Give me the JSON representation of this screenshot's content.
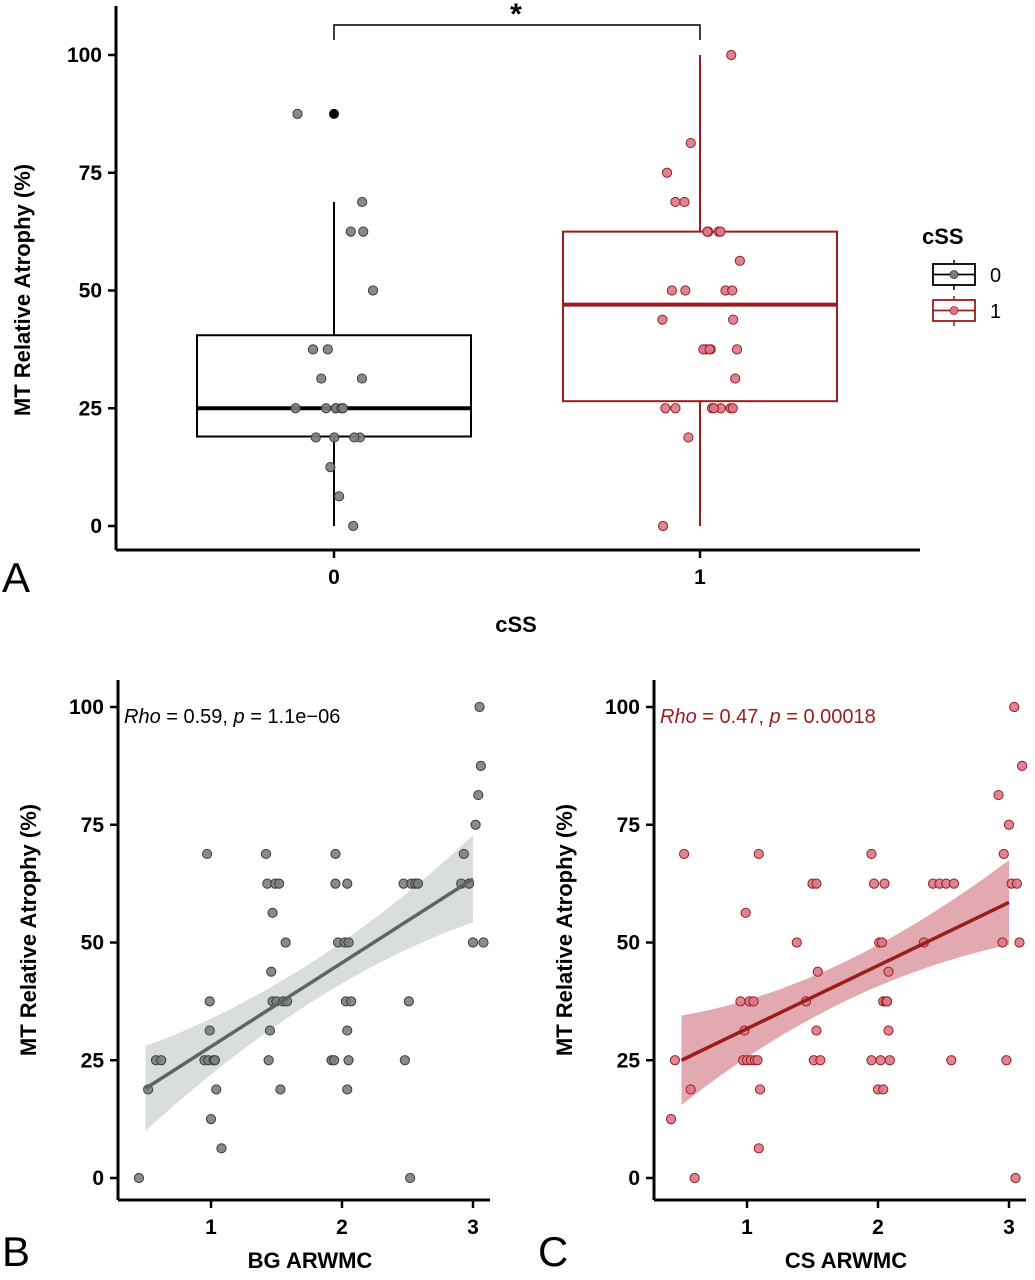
{
  "colors": {
    "black": "#000000",
    "group0_point": "#7a807c",
    "group1_point": "#d9788a",
    "group1_line": "#9b1c1c",
    "band0": "#d4d8d5",
    "band1": "#d7848f",
    "fit0": "#5f6461"
  },
  "chart_data": [
    {
      "panel_label": "A",
      "type": "box",
      "title": "",
      "xlabel": "cSS",
      "ylabel": "MT Relative Atrophy (%)",
      "categories": [
        "0",
        "1"
      ],
      "ylim": [
        -2,
        111
      ],
      "yticks": [
        0,
        25,
        50,
        75,
        100
      ],
      "significance": "*",
      "legend": {
        "title": "cSS",
        "entries": [
          "0",
          "1"
        ],
        "placement": "right"
      },
      "boxes": [
        {
          "category": "0",
          "whisker_low": 0,
          "q1": 19,
          "median": 25,
          "q3": 40.5,
          "whisker_high": 68.8,
          "outliers": [
            87.5
          ]
        },
        {
          "category": "1",
          "whisker_low": 0,
          "q1": 26.5,
          "median": 47,
          "q3": 62.5,
          "whisker_high": 100,
          "outliers": []
        }
      ],
      "points": [
        {
          "category": "0",
          "y": [
            0,
            6.3,
            12.5,
            18.8,
            18.8,
            18.8,
            18.8,
            25,
            25,
            25,
            25,
            25,
            25,
            31.3,
            31.3,
            37.5,
            37.5,
            50,
            62.5,
            62.5,
            68.8,
            87.5
          ]
        },
        {
          "category": "1",
          "y": [
            0,
            18.8,
            25,
            25,
            25,
            25,
            25,
            25,
            25,
            31.3,
            37.5,
            37.5,
            37.5,
            37.5,
            37.5,
            43.8,
            43.8,
            50,
            50,
            50,
            50,
            56.3,
            62.5,
            62.5,
            62.5,
            62.5,
            62.5,
            68.8,
            68.8,
            75,
            81.3,
            100
          ]
        }
      ]
    },
    {
      "panel_label": "B",
      "type": "scatter",
      "title": "",
      "xlabel": "BG ARWMC",
      "ylabel": "MT Relative Atrophy (%)",
      "xlim": [
        0.3,
        3.2
      ],
      "ylim": [
        -3,
        105
      ],
      "xticks": [
        1,
        2,
        3
      ],
      "yticks": [
        0,
        25,
        50,
        75,
        100
      ],
      "annotation": {
        "stat_name": "Rho",
        "stat_text": " = 0.59, ",
        "p_name": "p",
        "p_text": " = 1.1e−06"
      },
      "fit": {
        "x": [
          0.5,
          3.0
        ],
        "y": [
          19,
          63.5
        ],
        "ci_low": [
          10,
          54.5
        ],
        "ci_high": [
          28,
          73
        ]
      },
      "points": [
        {
          "x": 0.45,
          "y": 0
        },
        {
          "x": 0.52,
          "y": 18.8
        },
        {
          "x": 0.58,
          "y": 25
        },
        {
          "x": 0.62,
          "y": 25
        },
        {
          "x": 0.95,
          "y": 25
        },
        {
          "x": 0.97,
          "y": 68.8
        },
        {
          "x": 0.98,
          "y": 25
        },
        {
          "x": 0.99,
          "y": 31.3
        },
        {
          "x": 0.99,
          "y": 37.5
        },
        {
          "x": 1.0,
          "y": 12.5
        },
        {
          "x": 1.02,
          "y": 25
        },
        {
          "x": 1.03,
          "y": 25
        },
        {
          "x": 1.04,
          "y": 18.8
        },
        {
          "x": 1.08,
          "y": 6.3
        },
        {
          "x": 1.42,
          "y": 68.8
        },
        {
          "x": 1.43,
          "y": 62.5
        },
        {
          "x": 1.44,
          "y": 25
        },
        {
          "x": 1.45,
          "y": 31.3
        },
        {
          "x": 1.46,
          "y": 43.8
        },
        {
          "x": 1.47,
          "y": 56.3
        },
        {
          "x": 1.47,
          "y": 37.5
        },
        {
          "x": 1.49,
          "y": 62.5
        },
        {
          "x": 1.5,
          "y": 37.5
        },
        {
          "x": 1.52,
          "y": 62.5
        },
        {
          "x": 1.53,
          "y": 18.8
        },
        {
          "x": 1.55,
          "y": 37.5
        },
        {
          "x": 1.57,
          "y": 50
        },
        {
          "x": 1.58,
          "y": 37.5
        },
        {
          "x": 1.92,
          "y": 25
        },
        {
          "x": 1.94,
          "y": 25
        },
        {
          "x": 1.95,
          "y": 68.8
        },
        {
          "x": 1.95,
          "y": 62.5
        },
        {
          "x": 1.97,
          "y": 50
        },
        {
          "x": 2.02,
          "y": 50
        },
        {
          "x": 2.03,
          "y": 37.5
        },
        {
          "x": 2.04,
          "y": 62.5
        },
        {
          "x": 2.04,
          "y": 18.8
        },
        {
          "x": 2.04,
          "y": 31.3
        },
        {
          "x": 2.05,
          "y": 25
        },
        {
          "x": 2.05,
          "y": 50
        },
        {
          "x": 2.07,
          "y": 37.5
        },
        {
          "x": 2.47,
          "y": 62.5
        },
        {
          "x": 2.48,
          "y": 25
        },
        {
          "x": 2.51,
          "y": 37.5
        },
        {
          "x": 2.52,
          "y": 0
        },
        {
          "x": 2.53,
          "y": 62.5
        },
        {
          "x": 2.56,
          "y": 62.5
        },
        {
          "x": 2.58,
          "y": 62.5
        },
        {
          "x": 2.91,
          "y": 62.5
        },
        {
          "x": 2.93,
          "y": 68.8
        },
        {
          "x": 2.97,
          "y": 62.5
        },
        {
          "x": 3.0,
          "y": 50
        },
        {
          "x": 3.02,
          "y": 75
        },
        {
          "x": 3.04,
          "y": 81.3
        },
        {
          "x": 3.05,
          "y": 100
        },
        {
          "x": 3.06,
          "y": 87.5
        },
        {
          "x": 3.08,
          "y": 50
        }
      ]
    },
    {
      "panel_label": "C",
      "type": "scatter",
      "title": "",
      "xlabel": "CS ARWMC",
      "ylabel": "MT Relative Atrophy (%)",
      "xlim": [
        0.3,
        3.2
      ],
      "ylim": [
        -3,
        105
      ],
      "xticks": [
        1,
        2,
        3
      ],
      "yticks": [
        0,
        25,
        50,
        75,
        100
      ],
      "annotation": {
        "stat_name": "Rho",
        "stat_text": " = 0.47, ",
        "p_name": "p",
        "p_text": " = 0.00018"
      },
      "fit": {
        "x": [
          0.5,
          3.0
        ],
        "y": [
          25,
          58.5
        ],
        "ci_low": [
          15.5,
          49.5
        ],
        "ci_high": [
          34.5,
          67.5
        ]
      },
      "points": [
        {
          "x": 0.42,
          "y": 12.5
        },
        {
          "x": 0.45,
          "y": 25
        },
        {
          "x": 0.52,
          "y": 68.8
        },
        {
          "x": 0.57,
          "y": 18.8
        },
        {
          "x": 0.6,
          "y": 0
        },
        {
          "x": 0.95,
          "y": 37.5
        },
        {
          "x": 0.97,
          "y": 25
        },
        {
          "x": 0.98,
          "y": 31.3
        },
        {
          "x": 0.99,
          "y": 56.3
        },
        {
          "x": 1.0,
          "y": 25
        },
        {
          "x": 1.02,
          "y": 37.5
        },
        {
          "x": 1.03,
          "y": 25
        },
        {
          "x": 1.05,
          "y": 37.5
        },
        {
          "x": 1.06,
          "y": 25
        },
        {
          "x": 1.08,
          "y": 25
        },
        {
          "x": 1.09,
          "y": 6.3
        },
        {
          "x": 1.09,
          "y": 68.8
        },
        {
          "x": 1.1,
          "y": 18.8
        },
        {
          "x": 1.38,
          "y": 50
        },
        {
          "x": 1.45,
          "y": 37.5
        },
        {
          "x": 1.5,
          "y": 62.5
        },
        {
          "x": 1.51,
          "y": 25
        },
        {
          "x": 1.53,
          "y": 31.3
        },
        {
          "x": 1.53,
          "y": 62.5
        },
        {
          "x": 1.54,
          "y": 43.8
        },
        {
          "x": 1.56,
          "y": 25
        },
        {
          "x": 1.95,
          "y": 25
        },
        {
          "x": 1.95,
          "y": 68.8
        },
        {
          "x": 1.97,
          "y": 62.5
        },
        {
          "x": 2.0,
          "y": 18.8
        },
        {
          "x": 2.01,
          "y": 50
        },
        {
          "x": 2.02,
          "y": 25
        },
        {
          "x": 2.03,
          "y": 50
        },
        {
          "x": 2.04,
          "y": 18.8
        },
        {
          "x": 2.04,
          "y": 37.5
        },
        {
          "x": 2.05,
          "y": 62.5
        },
        {
          "x": 2.06,
          "y": 37.5
        },
        {
          "x": 2.07,
          "y": 37.5
        },
        {
          "x": 2.08,
          "y": 43.8
        },
        {
          "x": 2.08,
          "y": 31.3
        },
        {
          "x": 2.09,
          "y": 25
        },
        {
          "x": 2.35,
          "y": 50
        },
        {
          "x": 2.42,
          "y": 62.5
        },
        {
          "x": 2.47,
          "y": 62.5
        },
        {
          "x": 2.52,
          "y": 62.5
        },
        {
          "x": 2.56,
          "y": 25
        },
        {
          "x": 2.58,
          "y": 62.5
        },
        {
          "x": 2.92,
          "y": 81.3
        },
        {
          "x": 2.95,
          "y": 50
        },
        {
          "x": 2.96,
          "y": 68.8
        },
        {
          "x": 2.98,
          "y": 25
        },
        {
          "x": 3.0,
          "y": 75
        },
        {
          "x": 3.02,
          "y": 62.5
        },
        {
          "x": 3.04,
          "y": 100
        },
        {
          "x": 3.05,
          "y": 0
        },
        {
          "x": 3.06,
          "y": 62.5
        },
        {
          "x": 3.08,
          "y": 50
        },
        {
          "x": 3.1,
          "y": 87.5
        }
      ]
    }
  ]
}
